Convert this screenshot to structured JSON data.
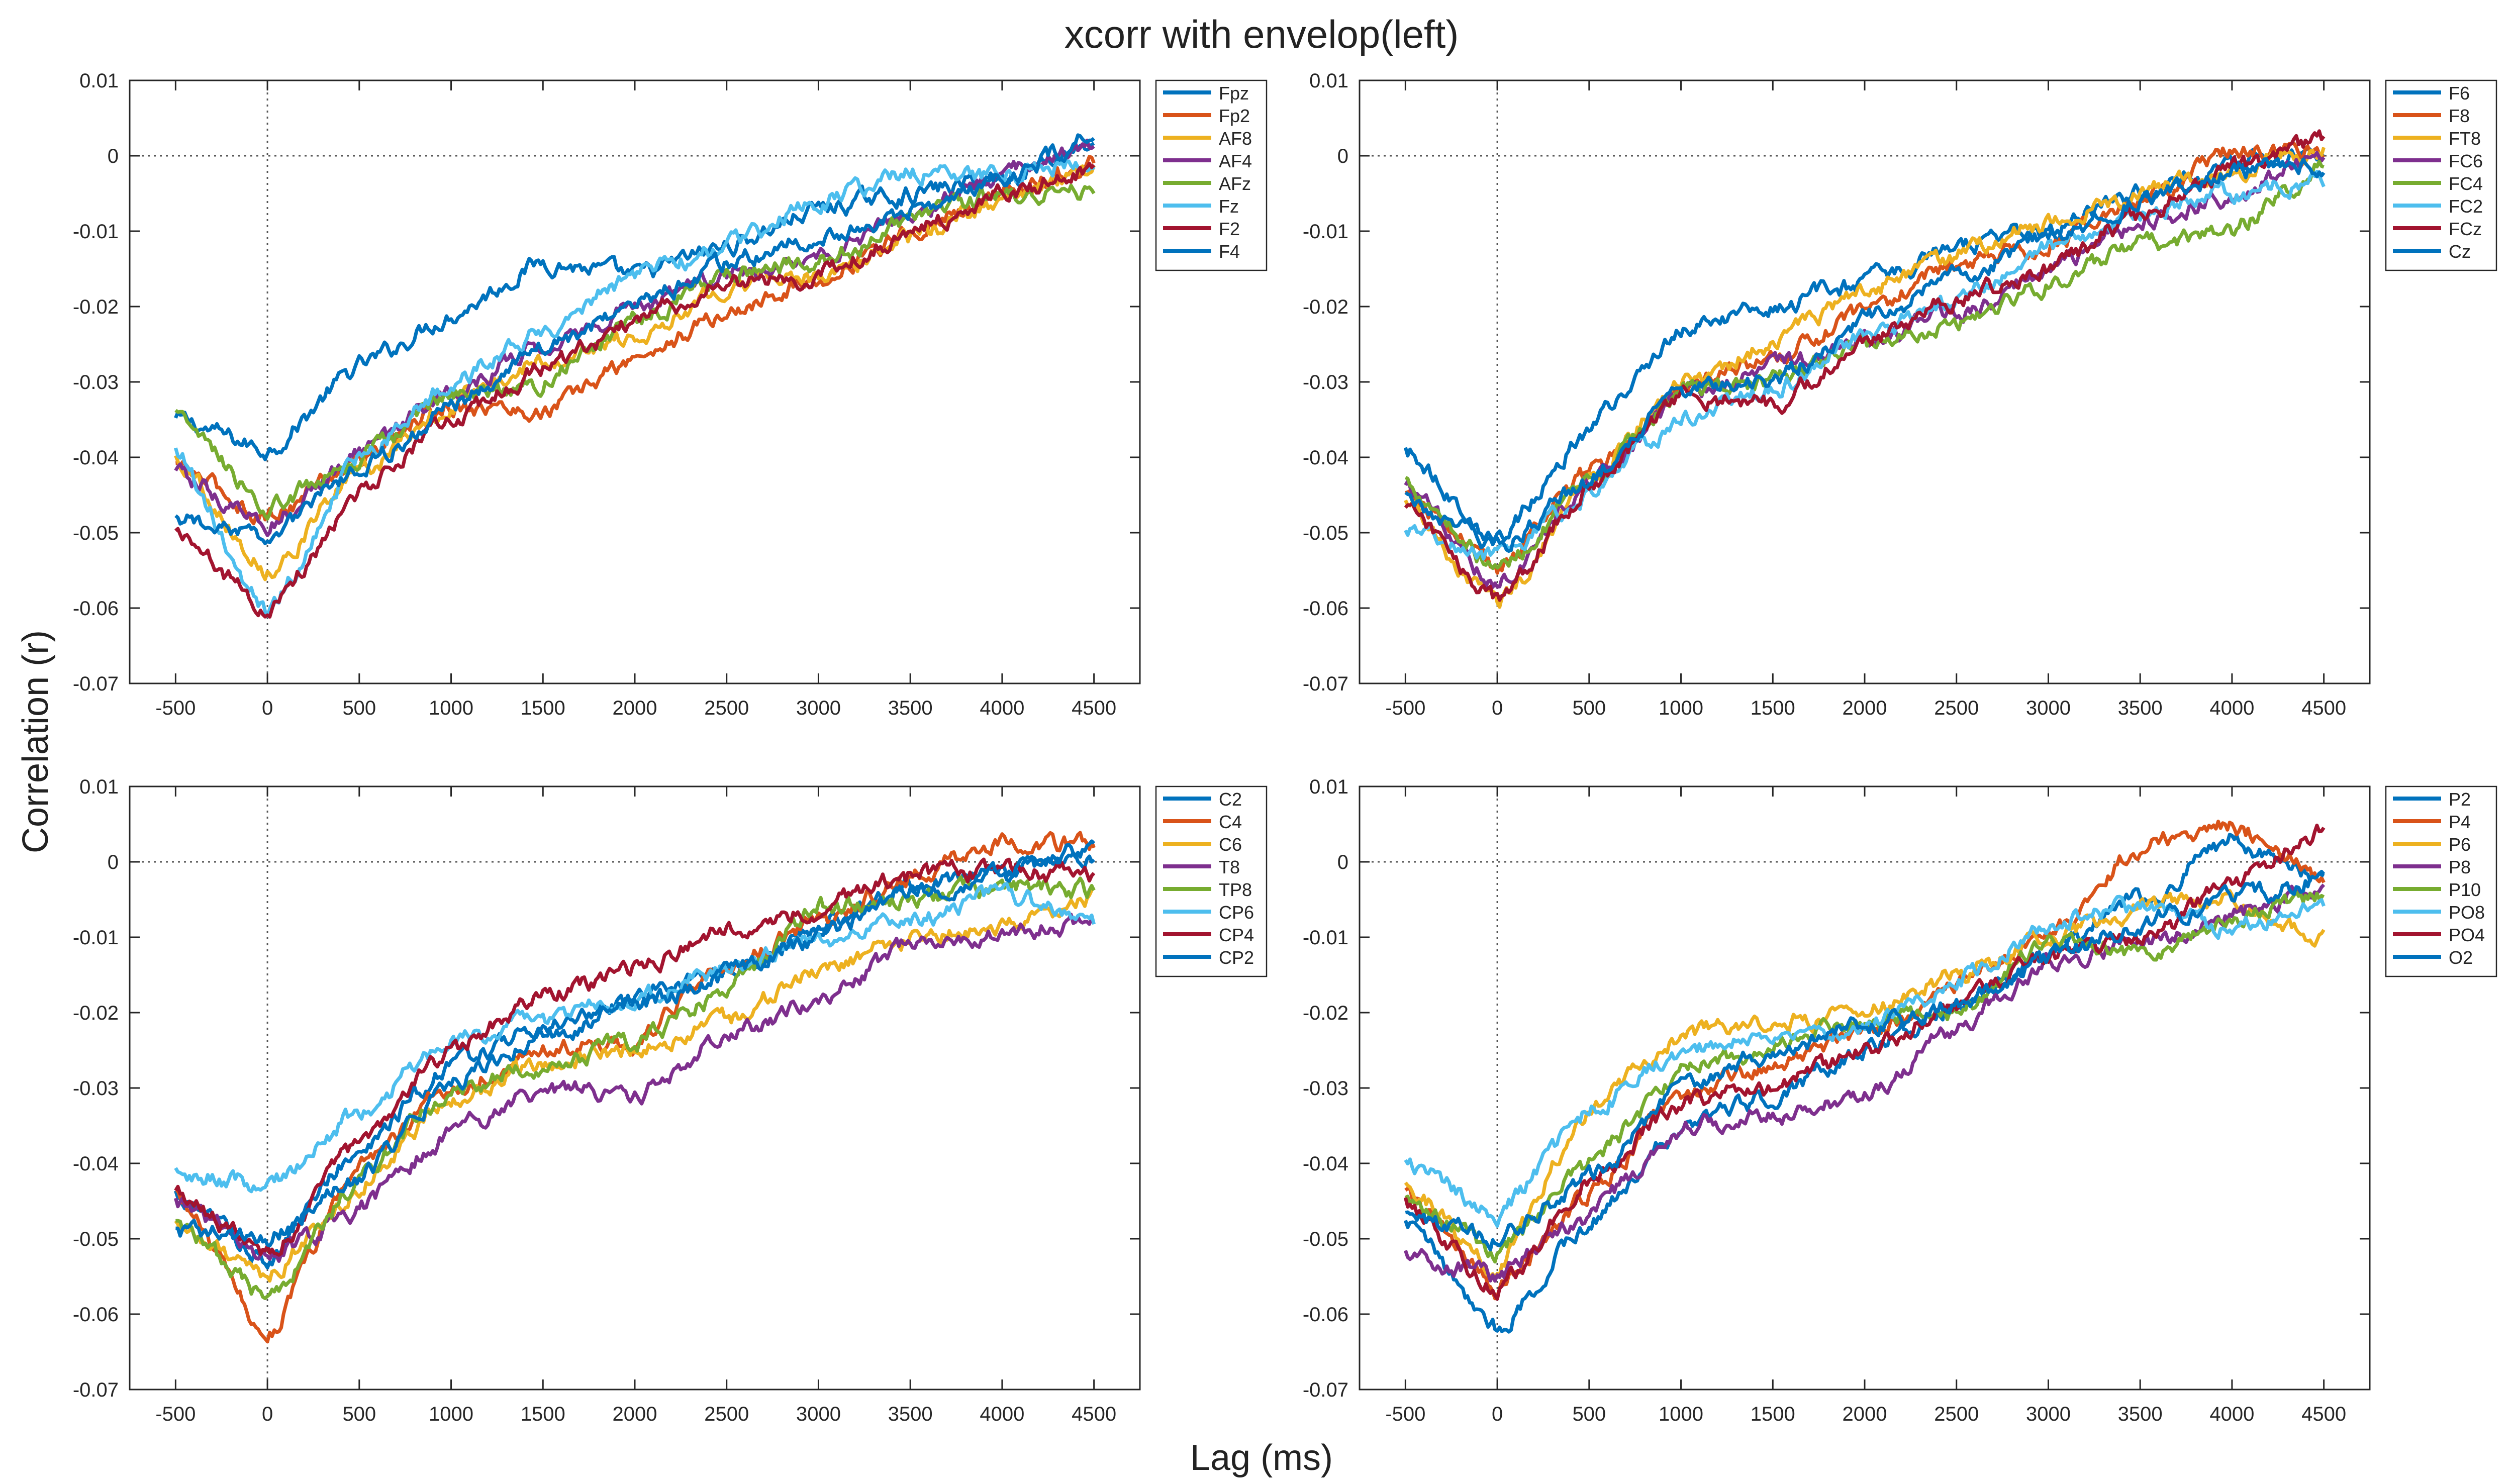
{
  "title": "xcorr with envelop(left)",
  "ylabel": "Correlation (r)",
  "xlabel": "Lag (ms)",
  "colors": [
    "#0072BD",
    "#D95319",
    "#EDB120",
    "#7E2F8E",
    "#77AC30",
    "#4DBEEE",
    "#A2142F",
    "#0072BD"
  ],
  "chart_data": [
    {
      "type": "line",
      "x": [
        -500,
        0,
        500,
        1000,
        1500,
        2000,
        2500,
        3000,
        3500,
        4000,
        4500
      ],
      "xticks": [
        "-500",
        "0",
        "500",
        "1000",
        "1500",
        "2000",
        "2500",
        "3000",
        "3500",
        "4000",
        "4500"
      ],
      "yticks": [
        "0.01",
        "0",
        "-0.01",
        "-0.02",
        "-0.03",
        "-0.04",
        "-0.05",
        "-0.06",
        "-0.07"
      ],
      "xlim": [
        -750,
        4750
      ],
      "ylim": [
        -0.07,
        0.01
      ],
      "series": [
        {
          "name": "Fpz",
          "values": [
            -0.035,
            -0.039,
            -0.028,
            -0.021,
            -0.014,
            -0.016,
            -0.012,
            -0.007,
            -0.005,
            -0.003,
            0.002
          ]
        },
        {
          "name": "Fp2",
          "values": [
            -0.041,
            -0.048,
            -0.04,
            -0.033,
            -0.034,
            -0.027,
            -0.021,
            -0.016,
            -0.01,
            -0.005,
            -0.001
          ]
        },
        {
          "name": "AF8",
          "values": [
            -0.04,
            -0.055,
            -0.042,
            -0.033,
            -0.027,
            -0.024,
            -0.017,
            -0.016,
            -0.011,
            -0.006,
            -0.002
          ]
        },
        {
          "name": "AF4",
          "values": [
            -0.042,
            -0.049,
            -0.04,
            -0.031,
            -0.025,
            -0.02,
            -0.016,
            -0.013,
            -0.008,
            -0.002,
            0.001
          ]
        },
        {
          "name": "AFz",
          "values": [
            -0.034,
            -0.047,
            -0.04,
            -0.032,
            -0.03,
            -0.022,
            -0.016,
            -0.014,
            -0.009,
            -0.005,
            -0.005
          ]
        },
        {
          "name": "Fz",
          "values": [
            -0.039,
            -0.061,
            -0.04,
            -0.03,
            -0.023,
            -0.016,
            -0.012,
            -0.006,
            -0.002,
            -0.003,
            0.0
          ]
        },
        {
          "name": "F2",
          "values": [
            -0.05,
            -0.06,
            -0.045,
            -0.035,
            -0.028,
            -0.022,
            -0.017,
            -0.016,
            -0.01,
            -0.005,
            -0.002
          ]
        },
        {
          "name": "F4",
          "values": [
            -0.048,
            -0.051,
            -0.042,
            -0.033,
            -0.025,
            -0.02,
            -0.014,
            -0.011,
            -0.007,
            -0.003,
            0.003
          ]
        }
      ]
    },
    {
      "type": "line",
      "x": [
        -500,
        0,
        500,
        1000,
        1500,
        2000,
        2500,
        3000,
        3500,
        4000,
        4500
      ],
      "xticks": [
        "-500",
        "0",
        "500",
        "1000",
        "1500",
        "2000",
        "2500",
        "3000",
        "3500",
        "4000",
        "4500"
      ],
      "yticks": [
        "0.01",
        "0",
        "-0.01",
        "-0.02",
        "-0.03",
        "-0.04",
        "-0.05",
        "-0.06",
        "-0.07"
      ],
      "xlim": [
        -750,
        4750
      ],
      "ylim": [
        -0.07,
        0.01
      ],
      "series": [
        {
          "name": "F6",
          "values": [
            -0.039,
            -0.051,
            -0.036,
            -0.023,
            -0.02,
            -0.017,
            -0.012,
            -0.01,
            -0.005,
            -0.001,
            0.001
          ]
        },
        {
          "name": "F8",
          "values": [
            -0.045,
            -0.055,
            -0.042,
            -0.031,
            -0.027,
            -0.021,
            -0.014,
            -0.012,
            -0.006,
            0.001,
            0.001
          ]
        },
        {
          "name": "FT8",
          "values": [
            -0.046,
            -0.06,
            -0.043,
            -0.03,
            -0.025,
            -0.018,
            -0.013,
            -0.009,
            -0.005,
            -0.002,
            0.001
          ]
        },
        {
          "name": "FC6",
          "values": [
            -0.044,
            -0.057,
            -0.043,
            -0.032,
            -0.028,
            -0.025,
            -0.021,
            -0.015,
            -0.009,
            -0.005,
            0.0
          ]
        },
        {
          "name": "FC4",
          "values": [
            -0.043,
            -0.055,
            -0.044,
            -0.031,
            -0.03,
            -0.025,
            -0.022,
            -0.017,
            -0.012,
            -0.01,
            -0.001
          ]
        },
        {
          "name": "FC2",
          "values": [
            -0.05,
            -0.053,
            -0.045,
            -0.035,
            -0.031,
            -0.024,
            -0.019,
            -0.012,
            -0.008,
            -0.005,
            -0.003
          ]
        },
        {
          "name": "FCz",
          "values": [
            -0.047,
            -0.059,
            -0.044,
            -0.032,
            -0.033,
            -0.025,
            -0.019,
            -0.015,
            -0.008,
            -0.002,
            0.002
          ]
        },
        {
          "name": "Cz",
          "values": [
            -0.045,
            -0.052,
            -0.043,
            -0.031,
            -0.03,
            -0.022,
            -0.016,
            -0.011,
            -0.006,
            -0.002,
            -0.001
          ]
        }
      ]
    },
    {
      "type": "line",
      "x": [
        -500,
        0,
        500,
        1000,
        1500,
        2000,
        2500,
        3000,
        3500,
        4000,
        4500
      ],
      "xticks": [
        "-500",
        "0",
        "500",
        "1000",
        "1500",
        "2000",
        "2500",
        "3000",
        "3500",
        "4000",
        "4500"
      ],
      "yticks": [
        "0.01",
        "0",
        "-0.01",
        "-0.02",
        "-0.03",
        "-0.04",
        "-0.05",
        "-0.06",
        "-0.07"
      ],
      "xlim": [
        -750,
        4750
      ],
      "ylim": [
        -0.07,
        0.01
      ],
      "series": [
        {
          "name": "C2",
          "values": [
            -0.044,
            -0.053,
            -0.038,
            -0.027,
            -0.022,
            -0.018,
            -0.015,
            -0.009,
            -0.003,
            -0.002,
            0.001
          ]
        },
        {
          "name": "C4",
          "values": [
            -0.044,
            -0.063,
            -0.04,
            -0.03,
            -0.025,
            -0.024,
            -0.014,
            -0.008,
            -0.002,
            0.003,
            0.002
          ]
        },
        {
          "name": "C6",
          "values": [
            -0.048,
            -0.055,
            -0.043,
            -0.031,
            -0.027,
            -0.025,
            -0.021,
            -0.014,
            -0.01,
            -0.008,
            -0.005
          ]
        },
        {
          "name": "T8",
          "values": [
            -0.045,
            -0.053,
            -0.046,
            -0.036,
            -0.03,
            -0.031,
            -0.023,
            -0.019,
            -0.011,
            -0.009,
            -0.008
          ]
        },
        {
          "name": "TP8",
          "values": [
            -0.048,
            -0.058,
            -0.042,
            -0.03,
            -0.027,
            -0.024,
            -0.017,
            -0.006,
            -0.005,
            -0.003,
            -0.004
          ]
        },
        {
          "name": "CP6",
          "values": [
            -0.041,
            -0.043,
            -0.033,
            -0.024,
            -0.021,
            -0.018,
            -0.014,
            -0.01,
            -0.008,
            -0.004,
            -0.008
          ]
        },
        {
          "name": "CP4",
          "values": [
            -0.044,
            -0.052,
            -0.037,
            -0.025,
            -0.018,
            -0.014,
            -0.009,
            -0.006,
            -0.002,
            -0.001,
            -0.002
          ]
        },
        {
          "name": "CP2",
          "values": [
            -0.049,
            -0.05,
            -0.042,
            -0.029,
            -0.023,
            -0.019,
            -0.015,
            -0.01,
            -0.004,
            -0.002,
            0.002
          ]
        }
      ]
    },
    {
      "type": "line",
      "x": [
        -500,
        0,
        500,
        1000,
        1500,
        2000,
        2500,
        3000,
        3500,
        4000,
        4500
      ],
      "xticks": [
        "-500",
        "0",
        "500",
        "1000",
        "1500",
        "2000",
        "2500",
        "3000",
        "3500",
        "4000",
        "4500"
      ],
      "yticks": [
        "0.01",
        "0",
        "-0.01",
        "-0.02",
        "-0.03",
        "-0.04",
        "-0.05",
        "-0.06",
        "-0.07"
      ],
      "xlim": [
        -750,
        4750
      ],
      "ylim": [
        -0.07,
        0.01
      ],
      "series": [
        {
          "name": "P2",
          "values": [
            -0.048,
            -0.062,
            -0.048,
            -0.035,
            -0.031,
            -0.025,
            -0.019,
            -0.012,
            -0.005,
            0.003,
            -0.002
          ]
        },
        {
          "name": "P4",
          "values": [
            -0.044,
            -0.057,
            -0.044,
            -0.031,
            -0.027,
            -0.023,
            -0.016,
            -0.01,
            0.002,
            0.005,
            -0.002
          ]
        },
        {
          "name": "P6",
          "values": [
            -0.043,
            -0.054,
            -0.033,
            -0.023,
            -0.021,
            -0.02,
            -0.015,
            -0.01,
            -0.006,
            -0.005,
            -0.01
          ]
        },
        {
          "name": "P8",
          "values": [
            -0.052,
            -0.055,
            -0.047,
            -0.035,
            -0.034,
            -0.031,
            -0.022,
            -0.013,
            -0.011,
            -0.007,
            -0.003
          ]
        },
        {
          "name": "P10",
          "values": [
            -0.045,
            -0.052,
            -0.04,
            -0.028,
            -0.024,
            -0.021,
            -0.02,
            -0.01,
            -0.012,
            -0.008,
            -0.004
          ]
        },
        {
          "name": "PO8",
          "values": [
            -0.04,
            -0.047,
            -0.033,
            -0.025,
            -0.023,
            -0.022,
            -0.016,
            -0.008,
            -0.006,
            -0.009,
            -0.005
          ]
        },
        {
          "name": "PO4",
          "values": [
            -0.045,
            -0.057,
            -0.042,
            -0.032,
            -0.03,
            -0.025,
            -0.019,
            -0.012,
            -0.011,
            -0.003,
            0.004
          ]
        },
        {
          "name": "O2",
          "values": [
            -0.047,
            -0.05,
            -0.042,
            -0.03,
            -0.025,
            -0.022,
            -0.019,
            -0.013,
            -0.008,
            -0.005,
            -0.002
          ]
        }
      ]
    }
  ]
}
